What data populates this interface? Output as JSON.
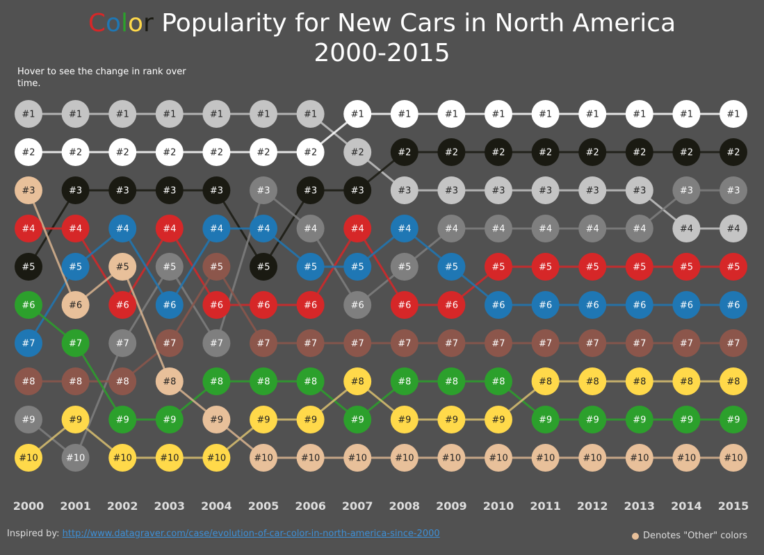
{
  "title": {
    "color_word": [
      "C",
      "o",
      "l",
      "o",
      "r"
    ],
    "rest": " Popularity for New Cars in North America",
    "line2": "2000-2015"
  },
  "subtitle": "Hover to see the change in rank over time.",
  "footer": {
    "label": "Inspired by:",
    "link_text": "http://www.datagraver.com/case/evolution-of-car-color-in-north-america-since-2000"
  },
  "legend": {
    "label": "Denotes \"Other\" colors",
    "color": "#e8c09a"
  },
  "chart_data": {
    "type": "bump",
    "x": [
      "2000",
      "2001",
      "2002",
      "2003",
      "2004",
      "2005",
      "2006",
      "2007",
      "2008",
      "2009",
      "2010",
      "2011",
      "2012",
      "2013",
      "2014",
      "2015"
    ],
    "rank_labels": [
      "#1",
      "#2",
      "#3",
      "#4",
      "#5",
      "#6",
      "#7",
      "#8",
      "#9",
      "#10"
    ],
    "series": [
      {
        "key": "silver",
        "color": "#c4c4c4",
        "text": "#222222",
        "line": "#c4c4c4",
        "ranks": [
          1,
          1,
          1,
          1,
          1,
          1,
          1,
          2,
          3,
          3,
          3,
          3,
          3,
          3,
          4,
          4
        ]
      },
      {
        "key": "white",
        "color": "#ffffff",
        "text": "#222222",
        "line": "#ffffff",
        "ranks": [
          2,
          2,
          2,
          2,
          2,
          2,
          2,
          1,
          1,
          1,
          1,
          1,
          1,
          1,
          1,
          1
        ]
      },
      {
        "key": "black",
        "color": "#1a1a12",
        "text": "#ffffff",
        "line": "#1a1a12",
        "ranks": [
          5,
          3,
          3,
          3,
          3,
          5,
          3,
          3,
          2,
          2,
          2,
          2,
          2,
          2,
          2,
          2
        ]
      },
      {
        "key": "gray",
        "color": "#7f7f7f",
        "text": "#ffffff",
        "line": "#7f7f7f",
        "ranks": [
          9,
          10,
          7,
          5,
          7,
          3,
          4,
          6,
          5,
          4,
          4,
          4,
          4,
          4,
          3,
          3
        ]
      },
      {
        "key": "red",
        "color": "#d62728",
        "text": "#ffffff",
        "line": "#d62728",
        "ranks": [
          4,
          4,
          6,
          4,
          6,
          6,
          6,
          4,
          6,
          6,
          5,
          5,
          5,
          5,
          5,
          5
        ]
      },
      {
        "key": "blue",
        "color": "#1f77b4",
        "text": "#ffffff",
        "line": "#1f77b4",
        "ranks": [
          7,
          5,
          4,
          6,
          4,
          4,
          5,
          5,
          4,
          5,
          6,
          6,
          6,
          6,
          6,
          6
        ]
      },
      {
        "key": "brown",
        "color": "#8c564b",
        "text": "#ffffff",
        "line": "#8c564b",
        "ranks": [
          8,
          8,
          8,
          7,
          5,
          7,
          7,
          7,
          7,
          7,
          7,
          7,
          7,
          7,
          7,
          7
        ]
      },
      {
        "key": "green",
        "color": "#2ca02c",
        "text": "#ffffff",
        "line": "#2ca02c",
        "ranks": [
          6,
          7,
          9,
          9,
          8,
          8,
          8,
          9,
          8,
          8,
          8,
          9,
          9,
          9,
          9,
          9
        ]
      },
      {
        "key": "yellow",
        "color": "#ffd94a",
        "text": "#222222",
        "line": "#d9c070",
        "ranks": [
          10,
          9,
          10,
          10,
          10,
          9,
          9,
          8,
          9,
          9,
          9,
          8,
          8,
          8,
          8,
          8
        ]
      },
      {
        "key": "other",
        "color": "#e8c09a",
        "text": "#222222",
        "line": "#d9b48f",
        "ranks": [
          3,
          6,
          5,
          8,
          9,
          10,
          10,
          10,
          10,
          10,
          10,
          10,
          10,
          10,
          10,
          10
        ]
      }
    ]
  }
}
